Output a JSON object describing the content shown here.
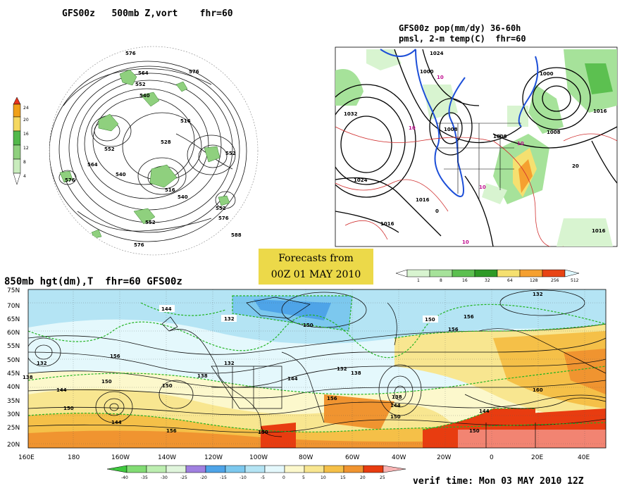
{
  "panel_500mb": {
    "title": "GFS00z   500mb Z,vort    fhr=60",
    "legend_values": [
      "24",
      "20",
      "16",
      "12",
      "8",
      "4"
    ],
    "legend_colors": [
      "#e8341c",
      "#f0a018",
      "#f5d860",
      "#52b84a",
      "#8fd07e",
      "#c9ecbd"
    ],
    "contour_labels": [
      "576",
      "564",
      "552",
      "540",
      "528",
      "516",
      "552",
      "576",
      "588",
      "576",
      "564",
      "552",
      "540",
      "576",
      "552",
      "576",
      "540",
      "516",
      "552"
    ]
  },
  "panel_pop": {
    "title_line1": "GFS00z pop(mm/dy) 36-60h",
    "title_line2": "pmsl, 2-m temp(C)  fhr=60",
    "legend_values": [
      "1",
      "8",
      "16",
      "32",
      "64",
      "128",
      "256",
      "512"
    ],
    "legend_colors": [
      "#d8f4d0",
      "#a6e29a",
      "#5cc050",
      "#2e9a26",
      "#f5e070",
      "#f5a030",
      "#e84414",
      "#dff8ff"
    ],
    "contour_labels": [
      "1024",
      "1032",
      "1024",
      "1016",
      "1016",
      "1008",
      "1008",
      "1000",
      "1008",
      "1000",
      "1016",
      "1016",
      "10",
      "10",
      "10",
      "10",
      "20",
      "0",
      "10"
    ]
  },
  "banner": {
    "line1": "Forecasts from",
    "line2": "00Z 01 MAY 2010"
  },
  "panel_850mb": {
    "title": "850mb hgt(dm),T  fhr=60 GFS00z",
    "lat_labels": [
      "75N",
      "70N",
      "65N",
      "60N",
      "55N",
      "50N",
      "45N",
      "40N",
      "35N",
      "30N",
      "25N",
      "20N"
    ],
    "lon_labels": [
      "160E",
      "180",
      "160W",
      "140W",
      "120W",
      "100W",
      "80W",
      "60W",
      "40W",
      "20W",
      "0",
      "20E",
      "40E"
    ],
    "contour_labels": [
      "144",
      "132",
      "150",
      "156",
      "132",
      "138",
      "144",
      "150",
      "156",
      "132",
      "138",
      "150",
      "156",
      "132",
      "138",
      "144",
      "156",
      "150",
      "144",
      "150",
      "138",
      "144",
      "150",
      "160",
      "144",
      "150",
      "156",
      "132",
      "150"
    ],
    "legend_values": [
      "-40",
      "-35",
      "-30",
      "-25",
      "-20",
      "-15",
      "-10",
      "-5",
      "0",
      "5",
      "10",
      "15",
      "20",
      "25"
    ],
    "legend_colors": [
      "#3ec83e",
      "#82dc74",
      "#bceeb0",
      "#e0f5dc",
      "#a080e0",
      "#4ea4e8",
      "#7cc8ee",
      "#b4e4f4",
      "#e4f8fc",
      "#fcf8cc",
      "#f8e690",
      "#f5c048",
      "#f09430",
      "#e83c10",
      "#f8b4b4"
    ]
  },
  "verif_time": "verif time: Mon 03 MAY 2010 12Z"
}
